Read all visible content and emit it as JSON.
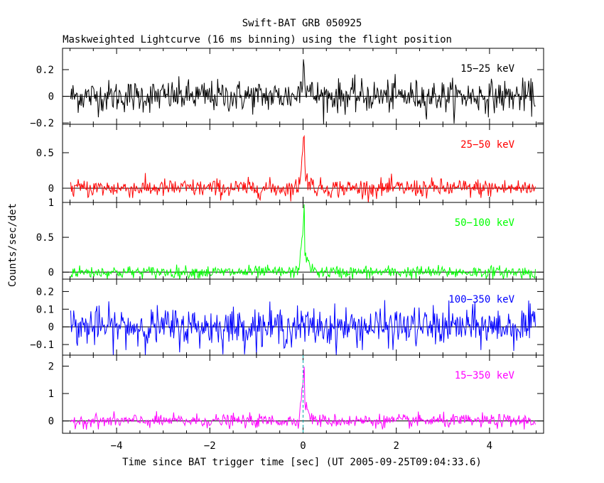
{
  "chart_data": {
    "type": "line",
    "title": "Swift-BAT GRB 050925",
    "subtitle": "Maskweighted Lightcurve (16 ms binning) using the flight position",
    "xlabel": "Time since BAT trigger time [sec] (UT 2005-09-25T09:04:33.6)",
    "ylabel": "Counts/sec/det",
    "xlim": [
      -5.16,
      5.16
    ],
    "x_ticks": [
      -4,
      -2,
      0,
      2,
      4
    ],
    "x_tick_labels": [
      "−4",
      "−2",
      "0",
      "2",
      "4"
    ],
    "series_range": [
      -4.984,
      4.984
    ],
    "bin_width_sec": 0.016,
    "panels": [
      {
        "label": "15−25 keV",
        "color": "#000000",
        "ylim": [
          -0.21,
          0.36
        ],
        "y_ticks": [
          -0.2,
          0,
          0.2
        ],
        "y_tick_labels": [
          "−0.2",
          "0",
          "0.2"
        ],
        "noise_sigma": 0.06,
        "peak": 0.32,
        "y_min_clip": -0.21,
        "y_max_clip": 0.36
      },
      {
        "label": "25−50 keV",
        "color": "#ff0000",
        "ylim": [
          -0.2,
          0.9
        ],
        "y_ticks": [
          0,
          0.5
        ],
        "y_tick_labels": [
          "0",
          "0.5"
        ],
        "noise_sigma": 0.065,
        "peak": 0.85,
        "y_min_clip": -0.2,
        "y_max_clip": 0.9
      },
      {
        "label": "50−100 keV",
        "color": "#00ff00",
        "ylim": [
          -0.1,
          1.0
        ],
        "y_ticks": [
          0,
          0.5,
          1
        ],
        "y_tick_labels": [
          "0",
          "0.5",
          "1"
        ],
        "noise_sigma": 0.045,
        "peak": 0.98,
        "y_min_clip": -0.1,
        "y_max_clip": 1.0
      },
      {
        "label": "100−350 keV",
        "color": "#0000ff",
        "ylim": [
          -0.16,
          0.27
        ],
        "y_ticks": [
          -0.1,
          0,
          0.1,
          0.2
        ],
        "y_tick_labels": [
          "−0.1",
          "0",
          "0.1",
          "0.2"
        ],
        "noise_sigma": 0.055,
        "peak": 0.0,
        "y_min_clip": -0.16,
        "y_max_clip": 0.27
      },
      {
        "label": "15−350 keV",
        "color": "#ff00ff",
        "ylim": [
          -0.45,
          2.4
        ],
        "y_ticks": [
          0,
          1,
          2
        ],
        "y_tick_labels": [
          "0",
          "1",
          "2"
        ],
        "noise_sigma": 0.12,
        "peak": 2.25,
        "y_min_clip": -0.45,
        "y_max_clip": 2.4
      }
    ]
  }
}
